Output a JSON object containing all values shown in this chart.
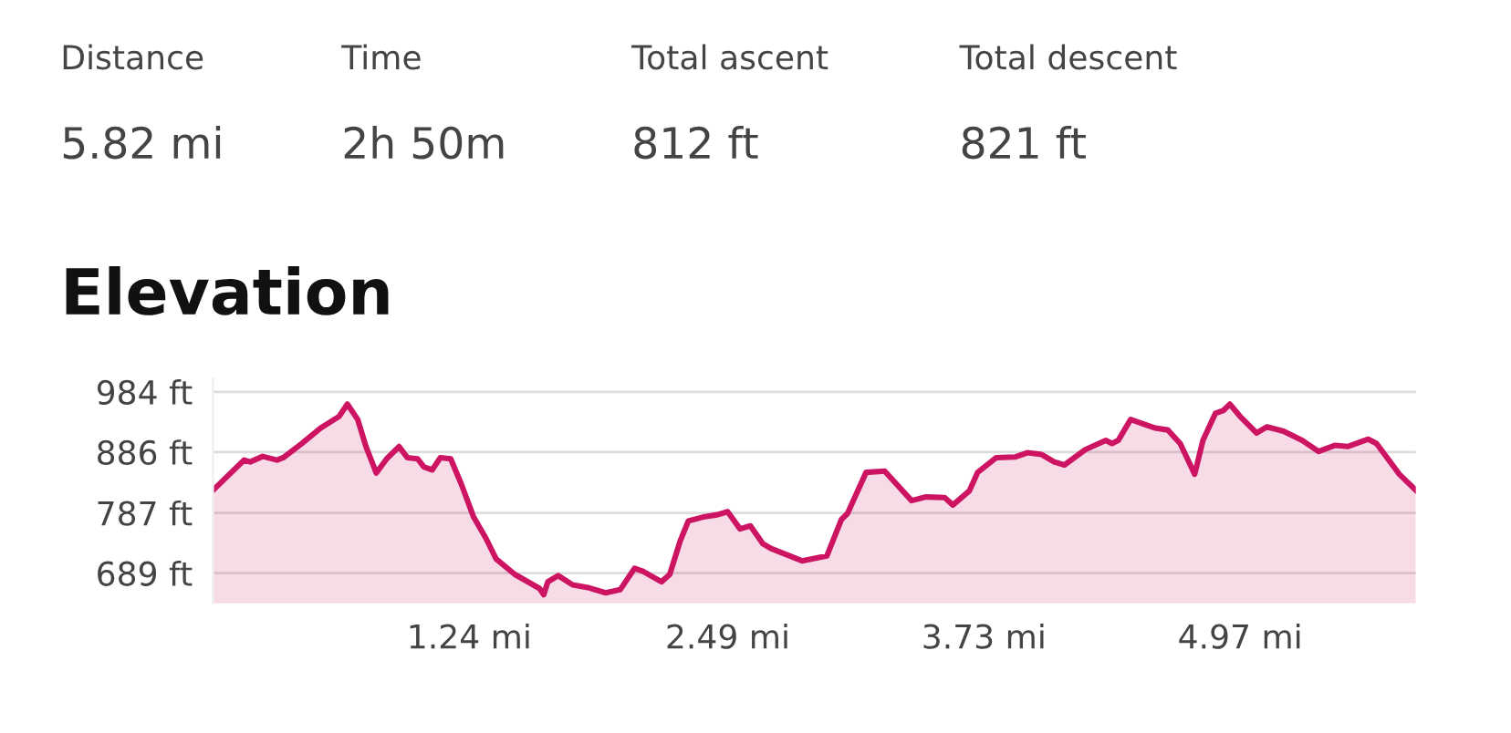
{
  "chart_data": {
    "type": "area",
    "title": "Elevation",
    "annotations": [
      "Distance",
      "5.82 mi",
      "Time",
      "2h 50m",
      "Total ascent",
      "812 ft",
      "Total descent",
      "821 ft"
    ],
    "x": [
      0.0,
      0.15,
      0.18,
      0.24,
      0.31,
      0.34,
      0.43,
      0.52,
      0.61,
      0.65,
      0.7,
      0.74,
      0.79,
      0.84,
      0.9,
      0.94,
      0.99,
      1.02,
      1.06,
      1.1,
      1.15,
      1.2,
      1.26,
      1.32,
      1.37,
      1.46,
      1.58,
      1.6,
      1.62,
      1.67,
      1.74,
      1.82,
      1.9,
      1.97,
      2.04,
      2.08,
      2.17,
      2.21,
      2.26,
      2.3,
      2.38,
      2.44,
      2.49,
      2.55,
      2.6,
      2.66,
      2.7,
      2.85,
      2.97,
      3.04,
      3.07,
      3.16,
      3.25,
      3.38,
      3.45,
      3.54,
      3.58,
      3.66,
      3.7,
      3.79,
      3.88,
      3.94,
      4.01,
      4.07,
      4.12,
      4.22,
      4.32,
      4.35,
      4.38,
      4.44,
      4.56,
      4.62,
      4.68,
      4.75,
      4.79,
      4.85,
      4.89,
      4.92,
      4.97,
      5.05,
      5.1,
      5.18,
      5.27,
      5.35,
      5.43,
      5.49,
      5.59,
      5.63,
      5.74,
      5.82
    ],
    "series": [
      {
        "color": "#cc1462",
        "values": [
          824,
          873,
          870,
          879,
          873,
          877,
          900,
          925,
          944,
          964,
          939,
          895,
          852,
          875,
          895,
          877,
          875,
          862,
          857,
          877,
          875,
          835,
          781,
          746,
          712,
          687,
          664,
          654,
          675,
          685,
          670,
          665,
          657,
          662,
          697,
          692,
          675,
          687,
          741,
          774,
          781,
          784,
          789,
          761,
          766,
          737,
          729,
          709,
          717,
          776,
          786,
          853,
          855,
          807,
          813,
          812,
          800,
          823,
          853,
          877,
          878,
          885,
          882,
          870,
          865,
          890,
          905,
          900,
          905,
          939,
          925,
          922,
          900,
          850,
          905,
          949,
          954,
          964,
          944,
          917,
          927,
          920,
          905,
          887,
          897,
          895,
          907,
          900,
          850,
          824
        ]
      }
    ],
    "xlim": [
      0,
      5.82
    ],
    "ylim": [
      640,
      1005
    ],
    "xticks": [
      {
        "value": 1.24,
        "label": "1.24 mi"
      },
      {
        "value": 2.49,
        "label": "2.49 mi"
      },
      {
        "value": 3.73,
        "label": "3.73 mi"
      },
      {
        "value": 4.97,
        "label": "4.97 mi"
      }
    ],
    "yticks": [
      {
        "value": 689,
        "label": "689 ft"
      },
      {
        "value": 787,
        "label": "787 ft"
      },
      {
        "value": 886,
        "label": "886 ft"
      },
      {
        "value": 984,
        "label": "984 ft"
      }
    ],
    "grid": "y",
    "legend": false
  }
}
